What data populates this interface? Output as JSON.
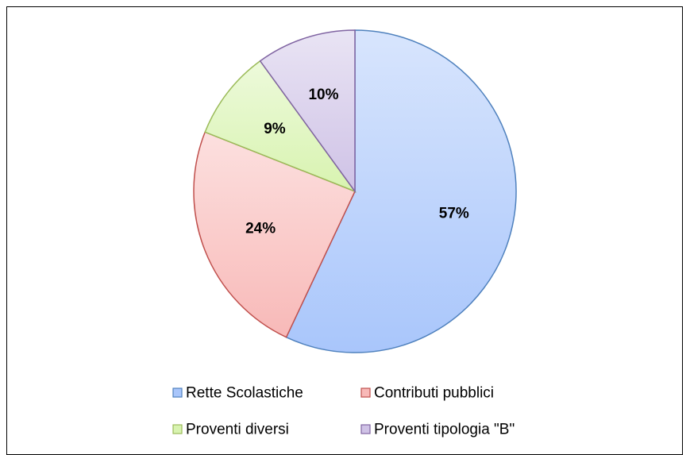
{
  "chart_data": {
    "type": "pie",
    "categories": [
      "Rette Scolastiche",
      "Contributi pubblici",
      "Proventi diversi",
      "Proventi tipologia \"B\""
    ],
    "values": [
      57,
      24,
      9,
      10
    ],
    "labels": [
      "57%",
      "24%",
      "9%",
      "10%"
    ],
    "colors": [
      "#a9c6fb",
      "#f8b9b8",
      "#d8f3b0",
      "#cfc2e6"
    ],
    "edge_colors": [
      "#4f81bd",
      "#c0504d",
      "#9bbb59",
      "#8064a2"
    ],
    "title": "",
    "legend_position": "bottom"
  }
}
